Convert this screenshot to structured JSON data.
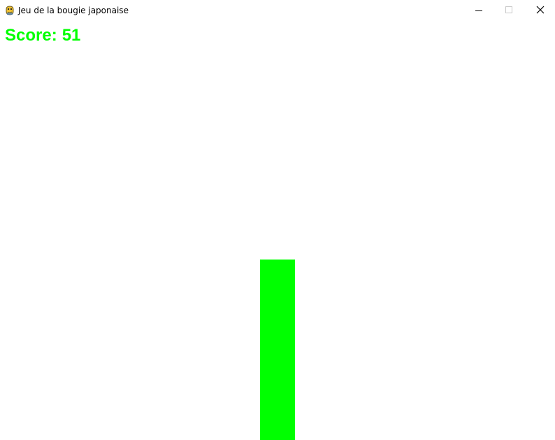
{
  "window": {
    "title": "Jeu de la bougie japonaise",
    "app_icon": "pygame-snake-icon",
    "controls": {
      "minimize_icon": "minimize-icon",
      "maximize_icon": "maximize-icon",
      "close_icon": "close-icon"
    }
  },
  "game": {
    "score_label": "Score:",
    "score_value": "51",
    "score_color": "#00ff00",
    "candle": {
      "color": "#00ff00",
      "height_fraction": 0.43
    },
    "background_color": "#ffffff"
  }
}
